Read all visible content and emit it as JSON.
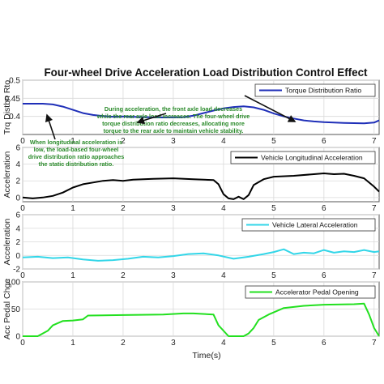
{
  "figure_title": "Four-wheel Drive Acceleration Load Distribution Control Effect",
  "x_axis_label": "Time(s)",
  "annotations": {
    "rear_load_note": [
      "During acceleration, the front axle load decreases",
      "while the rear axle load increases. The four-wheel drive",
      "torque distribution ratio decreases, allocating more",
      "torque to the rear axle to maintain vehicle stability."
    ],
    "low_accel_note": [
      "When longitudinal acceleration is",
      "low, the load-based four-wheel",
      "drive distribution ratio approaches",
      "the static distribution ratio."
    ]
  },
  "colors": {
    "torque": "#1f2fb8",
    "longitudinal": "#000000",
    "lateral": "#33d6e8",
    "pedal": "#22e01f",
    "annotation": "#2a8a2a"
  },
  "chart_data": [
    {
      "type": "line",
      "ylabel": "Trq Distbn Rto",
      "legend": "Torque Distribution Ratio",
      "legend_position": "top-right",
      "grid": true,
      "xlim": [
        0,
        7.1
      ],
      "ylim": [
        0.35,
        0.5
      ],
      "xticks": [
        0,
        1,
        2,
        3,
        4,
        5,
        6,
        7
      ],
      "yticks": [
        0.4,
        0.45,
        0.5
      ],
      "ytick_labels": [
        "0.4",
        "0.45",
        "0.5"
      ],
      "x": [
        0,
        0.4,
        0.6,
        0.8,
        1.0,
        1.2,
        1.4,
        1.6,
        1.8,
        2.0,
        2.4,
        2.8,
        3.2,
        3.4,
        3.6,
        3.8,
        4.0,
        4.2,
        4.4,
        4.6,
        4.8,
        5.0,
        5.2,
        5.4,
        5.6,
        5.8,
        6.0,
        6.4,
        6.8,
        7.0,
        7.1
      ],
      "y": [
        0.435,
        0.435,
        0.433,
        0.427,
        0.418,
        0.409,
        0.404,
        0.401,
        0.399,
        0.4,
        0.398,
        0.397,
        0.398,
        0.402,
        0.409,
        0.416,
        0.422,
        0.426,
        0.428,
        0.425,
        0.418,
        0.408,
        0.4,
        0.394,
        0.389,
        0.386,
        0.384,
        0.382,
        0.381,
        0.383,
        0.389
      ]
    },
    {
      "type": "line",
      "ylabel": "Acceleration",
      "legend": "Vehicle Longitudinal Acceleration",
      "legend_position": "top-right",
      "grid": true,
      "xlim": [
        0,
        7.1
      ],
      "ylim": [
        -0.5,
        6
      ],
      "xticks": [
        0,
        1,
        2,
        3,
        4,
        5,
        6,
        7
      ],
      "yticks": [
        0,
        2,
        4,
        6
      ],
      "ytick_labels": [
        "0",
        "2",
        "4",
        "6"
      ],
      "x": [
        0,
        0.2,
        0.4,
        0.6,
        0.8,
        1.0,
        1.2,
        1.4,
        1.6,
        1.8,
        2.0,
        2.2,
        2.6,
        3.0,
        3.4,
        3.8,
        3.9,
        4.0,
        4.1,
        4.2,
        4.3,
        4.4,
        4.5,
        4.6,
        4.8,
        5.0,
        5.4,
        5.8,
        6.0,
        6.2,
        6.4,
        6.6,
        6.8,
        7.0,
        7.1
      ],
      "y": [
        0.0,
        -0.1,
        0.0,
        0.2,
        0.6,
        1.2,
        1.6,
        1.8,
        2.0,
        2.1,
        2.0,
        2.15,
        2.25,
        2.3,
        2.2,
        2.1,
        1.6,
        0.4,
        -0.1,
        -0.2,
        0.1,
        -0.2,
        0.3,
        1.5,
        2.2,
        2.5,
        2.6,
        2.8,
        2.9,
        2.8,
        2.85,
        2.6,
        2.3,
        1.3,
        0.7
      ]
    },
    {
      "type": "line",
      "ylabel": "Acceleration",
      "legend": "Vehicle Lateral Acceleration",
      "legend_position": "top-right",
      "grid": true,
      "xlim": [
        0,
        7.1
      ],
      "ylim": [
        -2,
        6
      ],
      "xticks": [
        0,
        1,
        2,
        3,
        4,
        5,
        6,
        7
      ],
      "yticks": [
        -2,
        0,
        2,
        4,
        6
      ],
      "ytick_labels": [
        "-2",
        "0",
        "2",
        "4",
        "6"
      ],
      "x": [
        0,
        0.3,
        0.6,
        0.9,
        1.2,
        1.5,
        1.8,
        2.1,
        2.4,
        2.7,
        3.0,
        3.3,
        3.6,
        3.9,
        4.2,
        4.5,
        4.8,
        5.0,
        5.2,
        5.4,
        5.6,
        5.8,
        6.0,
        6.2,
        6.4,
        6.6,
        6.8,
        7.0,
        7.1
      ],
      "y": [
        -0.3,
        -0.2,
        -0.4,
        -0.3,
        -0.6,
        -0.8,
        -0.7,
        -0.5,
        -0.2,
        -0.3,
        -0.1,
        0.2,
        0.3,
        0.0,
        -0.5,
        -0.2,
        0.2,
        0.5,
        0.9,
        0.2,
        0.4,
        0.3,
        0.8,
        0.4,
        0.6,
        0.5,
        0.8,
        0.5,
        0.6
      ]
    },
    {
      "type": "line",
      "ylabel": "Acc Pedal Chge",
      "legend": "Accelerator Pedal Opening",
      "legend_position": "top-right",
      "grid": true,
      "xlim": [
        0,
        7.1
      ],
      "ylim": [
        0,
        100
      ],
      "xticks": [
        0,
        1,
        2,
        3,
        4,
        5,
        6,
        7
      ],
      "yticks": [
        0,
        50,
        100
      ],
      "ytick_labels": [
        "0",
        "50",
        "100"
      ],
      "x": [
        0,
        0.3,
        0.5,
        0.6,
        0.8,
        1.0,
        1.2,
        1.3,
        2.0,
        2.8,
        3.2,
        3.4,
        3.8,
        3.9,
        4.1,
        4.4,
        4.5,
        4.6,
        4.7,
        4.9,
        5.2,
        5.6,
        6.0,
        6.6,
        6.8,
        6.9,
        7.0,
        7.1
      ],
      "y": [
        0,
        0,
        10,
        20,
        28,
        29,
        31,
        38,
        39,
        40,
        42,
        42,
        40,
        20,
        0,
        0,
        5,
        15,
        30,
        40,
        52,
        56,
        58,
        59,
        60,
        40,
        15,
        0
      ]
    }
  ]
}
